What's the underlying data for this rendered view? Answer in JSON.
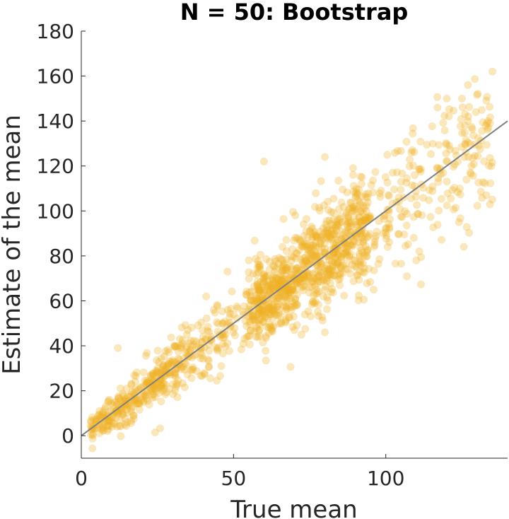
{
  "chart_data": {
    "type": "scatter",
    "title": "N = 50: Bootstrap",
    "xlabel": "True mean",
    "ylabel": "Estimate of the mean",
    "xlim": [
      0,
      140
    ],
    "ylim": [
      -10,
      180
    ],
    "xticks": [
      0,
      50,
      100
    ],
    "yticks": [
      0,
      20,
      40,
      60,
      80,
      100,
      120,
      140,
      160,
      180
    ],
    "grid": false,
    "legend": "none",
    "colors": {
      "points": "#EDB120",
      "reference_line": "#808080",
      "axes": "#262626"
    },
    "reference_line": {
      "x": [
        0,
        140
      ],
      "y": [
        0,
        140
      ]
    },
    "point_count_rendered": 1500,
    "noise_model": {
      "clusters": [
        {
          "x_range": [
            3,
            35
          ],
          "weight": 0.22
        },
        {
          "x_range": [
            35,
            55
          ],
          "weight": 0.08
        },
        {
          "x_range": [
            55,
            95
          ],
          "weight": 0.55
        },
        {
          "x_range": [
            95,
            135
          ],
          "weight": 0.15
        }
      ],
      "sd_at_x0": 3,
      "sd_slope": 0.1
    },
    "outliers": [
      [
        12,
        39
      ],
      [
        6,
        11
      ],
      [
        15,
        6
      ],
      [
        135,
        162
      ],
      [
        124,
        95
      ],
      [
        133,
        107
      ],
      [
        127,
        156
      ],
      [
        105,
        113
      ],
      [
        70,
        47
      ],
      [
        80,
        46
      ],
      [
        96,
        65
      ],
      [
        110,
        78
      ],
      [
        55,
        78
      ],
      [
        48,
        73
      ],
      [
        35,
        47
      ],
      [
        41,
        62
      ],
      [
        60,
        122
      ],
      [
        80,
        124
      ],
      [
        117,
        146
      ],
      [
        125,
        150
      ],
      [
        111,
        82
      ],
      [
        92,
        112
      ],
      [
        120,
        150
      ]
    ]
  }
}
